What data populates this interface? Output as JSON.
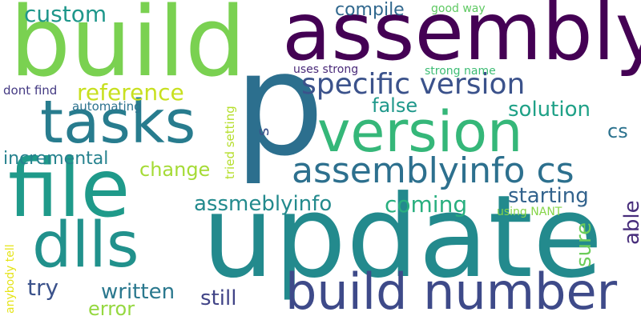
{
  "words": [
    {
      "text": "p",
      "color": "#2c6f8e"
    },
    {
      "text": "update",
      "color": "#238a8d"
    },
    {
      "text": "build",
      "color": "#7ad151"
    },
    {
      "text": "assembly",
      "color": "#440154"
    },
    {
      "text": "file",
      "color": "#1f9a8a"
    },
    {
      "text": "version",
      "color": "#35b779"
    },
    {
      "text": "tasks",
      "color": "#287c8e"
    },
    {
      "text": "build number",
      "color": "#3e4a89"
    },
    {
      "text": "dlls",
      "color": "#21918c"
    },
    {
      "text": "assemblyinfo cs",
      "color": "#2d708e"
    },
    {
      "text": "specific version",
      "color": "#3b528b"
    },
    {
      "text": "custom",
      "color": "#1f978b"
    },
    {
      "text": "reference",
      "color": "#c8e020"
    },
    {
      "text": "incremental",
      "color": "#26828e"
    },
    {
      "text": "change",
      "color": "#a5db36"
    },
    {
      "text": "assmeblyinfo",
      "color": "#238a8d"
    },
    {
      "text": "coming",
      "color": "#29af7f"
    },
    {
      "text": "starting",
      "color": "#33638d"
    },
    {
      "text": "solution",
      "color": "#1fa187"
    },
    {
      "text": "false",
      "color": "#1f988b"
    },
    {
      "text": "compile",
      "color": "#31688e"
    },
    {
      "text": "written",
      "color": "#2a788e"
    },
    {
      "text": "try",
      "color": "#3b528b"
    },
    {
      "text": "still",
      "color": "#414487"
    },
    {
      "text": "error",
      "color": "#95d840"
    },
    {
      "text": "cs",
      "color": "#2c728e"
    },
    {
      "text": "able",
      "color": "#472d7b"
    },
    {
      "text": "sure",
      "color": "#6ccd5a"
    },
    {
      "text": "s",
      "color": "#3b528b"
    },
    {
      "text": "good way",
      "color": "#5ec962"
    },
    {
      "text": "strong name",
      "color": "#3dbc74"
    },
    {
      "text": "uses strong",
      "color": "#482878"
    },
    {
      "text": "dont find",
      "color": "#443a83"
    },
    {
      "text": "automating",
      "color": "#2c728e"
    },
    {
      "text": "tried setting",
      "color": "#b5de2b"
    },
    {
      "text": "using NANT",
      "color": "#86d549"
    },
    {
      "text": "anybody tell",
      "color": "#e5e419"
    }
  ]
}
